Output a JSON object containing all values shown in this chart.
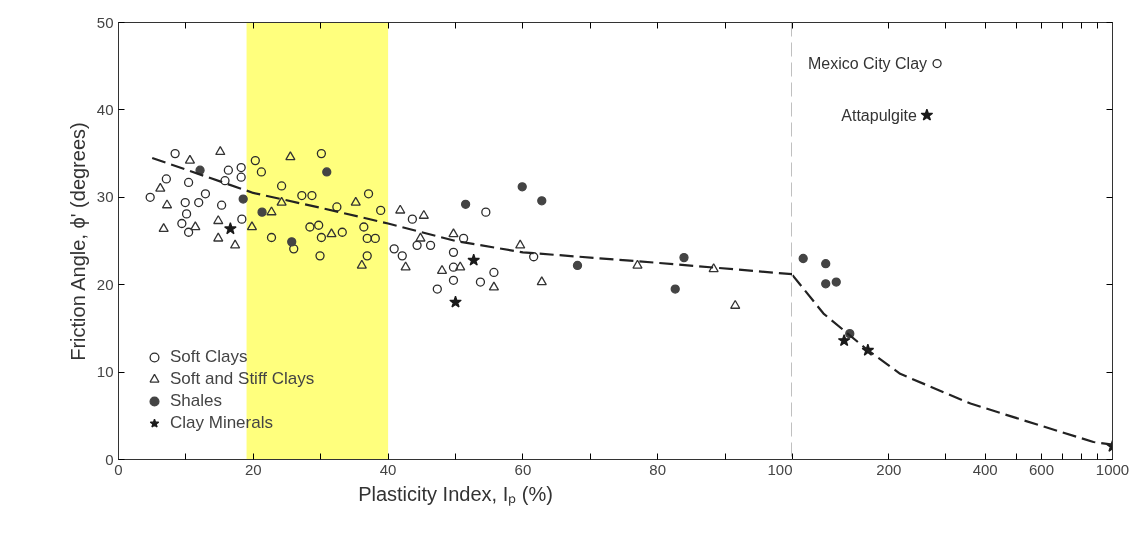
{
  "chart_data": [
    {
      "type": "scatter",
      "xlabel": "Plasticity Index, Iₚ (%)",
      "ylabel": "Friction Angle, ϕ' (degrees)",
      "xlim": [
        0,
        100
      ],
      "ylim": [
        0,
        50
      ],
      "xticks": [
        0,
        {
          "value": 10,
          "label": null
        },
        20,
        {
          "value": 30,
          "label": null
        },
        40,
        {
          "value": 50,
          "label": null
        },
        60,
        {
          "value": 70,
          "label": null
        },
        80,
        {
          "value": 90,
          "label": null
        },
        100
      ],
      "yticks": [
        0,
        10,
        20,
        30,
        40,
        50
      ],
      "grid": false,
      "legend": "bottom left",
      "bands": [
        {
          "axis": "x",
          "from": 19,
          "to": 40,
          "label": null,
          "color": "#ffff66"
        }
      ],
      "ref_lines": [
        {
          "axis": "x",
          "value": 100,
          "label": null,
          "line_style": "dashed",
          "color": "#000000"
        }
      ],
      "series": [
        {
          "name": "Soft Clays",
          "color": "#2b2b2b",
          "marker": "circle",
          "x": [
            8.4,
            4.7,
            7.1,
            10.4,
            12.9,
            16.3,
            18.2,
            18.2,
            20.3,
            21.2,
            30.1,
            9.9,
            11.9,
            15.3,
            18.3,
            10.1,
            9.4,
            10.4,
            15.8,
            28.7,
            29.7,
            29.9,
            26,
            22.7,
            28.4,
            30.1,
            24.2,
            27.2,
            54.5,
            44.3,
            46.3,
            42.1,
            49.7,
            49.7,
            47.3,
            49.7,
            55.7,
            53.7,
            51.2,
            43.6,
            61.6,
            40.9,
            36.4,
            36.9,
            38.1,
            36.9,
            33.2,
            37.1,
            38.9,
            32.4
          ],
          "values": [
            35.0,
            30.0,
            32.1,
            31.7,
            30.4,
            33.1,
            33.4,
            32.3,
            34.2,
            32.9,
            35.0,
            29.4,
            29.4,
            29.1,
            27.5,
            28.1,
            27.0,
            26.0,
            31.9,
            30.2,
            26.8,
            23.3,
            24.1,
            25.4,
            26.6,
            25.4,
            31.3,
            30.2,
            28.3,
            24.5,
            24.5,
            23.3,
            23.7,
            22.0,
            19.5,
            20.5,
            21.4,
            20.3,
            25.3,
            27.5,
            23.2,
            24.1,
            26.6,
            25.3,
            25.3,
            23.3,
            26.0,
            30.4,
            28.5,
            28.9
          ]
        },
        {
          "name": "Soft and Stiff Clays",
          "color": "#333333",
          "marker": "triangle",
          "x": [
            6.2,
            6.7,
            10.6,
            15.1,
            7.2,
            14.8,
            17.3,
            14.8,
            25.5,
            22.7,
            31.6,
            11.4,
            19.8,
            24.2,
            41.8,
            45.3,
            42.6,
            48.0,
            50.7,
            55.7,
            62.8,
            59.6,
            49.7,
            35.2,
            36.1,
            44.8,
            77.0,
            88.3,
            91.5
          ],
          "values": [
            31.0,
            26.4,
            34.2,
            35.2,
            29.1,
            27.3,
            24.5,
            25.3,
            34.6,
            28.3,
            25.8,
            26.6,
            26.6,
            29.4,
            28.5,
            27.9,
            22.0,
            21.6,
            22.0,
            19.7,
            20.3,
            24.5,
            25.8,
            29.4,
            22.2,
            25.3,
            22.2,
            21.8,
            17.6
          ]
        },
        {
          "name": "Shales",
          "color": "#444444",
          "marker": "dot",
          "x": [
            12.1,
            30.9,
            18.5,
            21.3,
            25.7,
            51.5,
            59.9,
            62.8,
            68.1,
            83.9,
            82.6
          ],
          "values": [
            33.1,
            32.9,
            29.8,
            28.3,
            24.9,
            29.2,
            31.2,
            29.6,
            22.2,
            23.1,
            19.5
          ]
        },
        {
          "name": "Clay Minerals",
          "color": "#1a1a1a",
          "marker": "star",
          "x": [
            16.6,
            52.7,
            50.0
          ],
          "values": [
            26.4,
            22.8,
            18.0
          ]
        },
        {
          "type": "line",
          "color": "#222222",
          "line_style": "dashed",
          "x": [
            5,
            20,
            30,
            40,
            50,
            60,
            80,
            100
          ],
          "values": [
            34.5,
            30.5,
            28.8,
            27,
            25,
            23.7,
            22.5,
            21.2
          ]
        }
      ]
    },
    {
      "type": "scatter",
      "log": "x",
      "xlim": [
        100,
        1000
      ],
      "ylim": [
        0,
        50
      ],
      "tick_labels": "x",
      "xticks": [
        {
          "value": 100,
          "label": null
        },
        200,
        {
          "value": 300,
          "label": null
        },
        400,
        {
          "value": 500,
          "label": null
        },
        600,
        {
          "value": 700,
          "label": null
        },
        {
          "value": 800,
          "label": null
        },
        {
          "value": 900,
          "label": null
        },
        1000
      ],
      "yticks": [
        0,
        10,
        20,
        30,
        40,
        50
      ],
      "grid": false,
      "annotations": [
        {
          "text": "Mexico City Clay",
          "x": 283,
          "y": 45.3
        },
        {
          "text": "Attapulgite",
          "x": 263,
          "y": 39.4
        }
      ],
      "series": [
        {
          "color": "#2b2b2b",
          "marker": "circle",
          "x": [
            283
          ],
          "values": [
            45.3
          ]
        },
        {
          "color": "#444444",
          "marker": "dot",
          "x": [
            108,
            127,
            127,
            137,
            151
          ],
          "values": [
            23.0,
            22.4,
            20.1,
            20.3,
            14.4
          ]
        },
        {
          "color": "#1a1a1a",
          "marker": "star",
          "x": [
            145,
            172,
            263,
            1000
          ],
          "values": [
            13.6,
            12.5,
            39.4,
            1.5
          ]
        },
        {
          "type": "line",
          "color": "#222222",
          "line_style": "dashed",
          "x": [
            100,
            125,
            172,
            217,
            360,
            526,
            872,
            1000
          ],
          "values": [
            21.1,
            16.7,
            12.5,
            9.8,
            6.4,
            4.5,
            2.0,
            1.7
          ]
        }
      ]
    }
  ]
}
